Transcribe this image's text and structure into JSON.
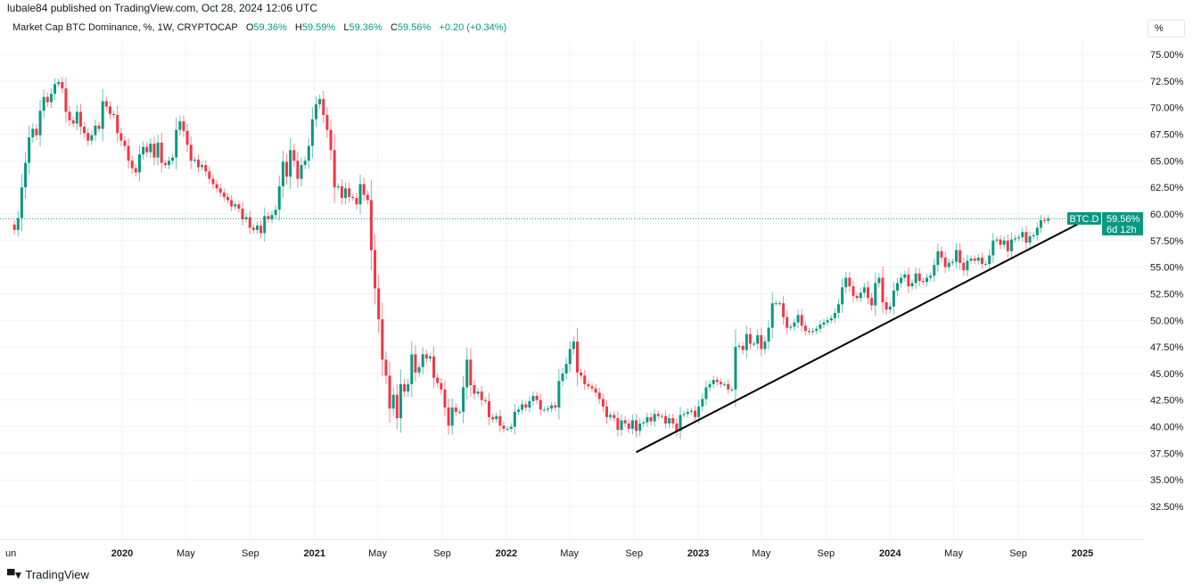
{
  "header": {
    "published": "lubale84 published on TradingView.com, Oct 28, 2024 12:06 UTC",
    "symbol": "Market Cap BTC Dominance, %, 1W, CRYPTOCAP",
    "o_label": "O",
    "o_value": "59.36%",
    "h_label": "H",
    "h_value": "59.59%",
    "l_label": "L",
    "l_value": "59.36%",
    "c_label": "C",
    "c_value": "59.56%",
    "change": "+0.20 (+0.34%)"
  },
  "scale_button": "%",
  "price_label": {
    "symbol": "BTC.D",
    "value": "59.56%",
    "countdown": "6d 12h"
  },
  "brand": {
    "logo_icon": "tradingview-logo-icon",
    "name": "TradingView"
  },
  "colors": {
    "up": "#089981",
    "down": "#f23645",
    "grid": "#f0f3fa",
    "trendline": "#000000"
  },
  "chart_data": {
    "type": "candlestick",
    "interval": "1W",
    "last_candle_date": "2024-10-28",
    "ylim": [
      30,
      76
    ],
    "yticks": [
      "32.50%",
      "35.00%",
      "37.50%",
      "40.00%",
      "42.50%",
      "45.00%",
      "47.50%",
      "50.00%",
      "52.50%",
      "55.00%",
      "57.50%",
      "60.00%",
      "62.50%",
      "65.00%",
      "67.50%",
      "70.00%",
      "72.50%",
      "75.00%"
    ],
    "ytick_values": [
      32.5,
      35,
      37.5,
      40,
      42.5,
      45,
      47.5,
      50,
      52.5,
      55,
      57.5,
      60,
      62.5,
      65,
      67.5,
      70,
      72.5,
      75
    ],
    "xticks": [
      {
        "label": "un",
        "date": "2019-06-01",
        "bold": false
      },
      {
        "label": "2020",
        "date": "2020-01-01",
        "bold": true
      },
      {
        "label": "May",
        "date": "2020-05-01",
        "bold": false
      },
      {
        "label": "Sep",
        "date": "2020-09-01",
        "bold": false
      },
      {
        "label": "2021",
        "date": "2021-01-01",
        "bold": true
      },
      {
        "label": "May",
        "date": "2021-05-01",
        "bold": false
      },
      {
        "label": "Sep",
        "date": "2021-09-01",
        "bold": false
      },
      {
        "label": "2022",
        "date": "2022-01-01",
        "bold": true
      },
      {
        "label": "May",
        "date": "2022-05-01",
        "bold": false
      },
      {
        "label": "Sep",
        "date": "2022-09-01",
        "bold": false
      },
      {
        "label": "2023",
        "date": "2023-01-01",
        "bold": true
      },
      {
        "label": "May",
        "date": "2023-05-01",
        "bold": false
      },
      {
        "label": "Sep",
        "date": "2023-09-01",
        "bold": false
      },
      {
        "label": "2024",
        "date": "2024-01-01",
        "bold": true
      },
      {
        "label": "May",
        "date": "2024-05-01",
        "bold": false
      },
      {
        "label": "Sep",
        "date": "2024-09-01",
        "bold": false
      },
      {
        "label": "2025",
        "date": "2025-01-01",
        "bold": true
      }
    ],
    "first_open": 59.0,
    "weekly_closes": [
      58.5,
      59.6,
      62.5,
      64.8,
      67.2,
      68.0,
      67.4,
      69.7,
      71.0,
      70.5,
      71.3,
      72.2,
      72.4,
      71.8,
      69.6,
      68.8,
      68.5,
      69.6,
      68.2,
      67.6,
      66.9,
      67.4,
      68.3,
      68.0,
      70.6,
      70.1,
      69.4,
      69.3,
      67.6,
      66.9,
      66.4,
      65.0,
      64.3,
      63.9,
      65.6,
      66.3,
      65.8,
      66.6,
      65.3,
      66.7,
      64.8,
      64.6,
      65.0,
      65.3,
      67.9,
      68.7,
      67.8,
      66.5,
      65.0,
      65.1,
      64.4,
      64.6,
      64.0,
      63.3,
      62.8,
      62.4,
      62.0,
      61.6,
      61.3,
      60.7,
      60.9,
      60.5,
      59.5,
      59.7,
      58.7,
      58.5,
      58.9,
      58.2,
      59.8,
      59.5,
      59.9,
      60.4,
      62.6,
      64.9,
      63.5,
      66.0,
      65.0,
      63.3,
      64.6,
      65.0,
      66.4,
      68.9,
      70.3,
      70.8,
      69.3,
      67.9,
      66.0,
      62.5,
      62.6,
      61.5,
      62.4,
      61.6,
      61.5,
      60.9,
      62.8,
      61.8,
      61.3,
      56.6,
      53.0,
      50.1,
      46.3,
      44.8,
      41.7,
      43.0,
      40.8,
      44.0,
      43.3,
      44.0,
      46.8,
      45.1,
      45.6,
      46.8,
      46.4,
      46.6,
      44.6,
      44.1,
      43.5,
      41.8,
      40.1,
      41.8,
      41.4,
      41.4,
      43.7,
      46.3,
      43.9,
      43.1,
      43.3,
      42.5,
      42.4,
      40.9,
      40.7,
      41.0,
      40.1,
      39.8,
      39.8,
      40.0,
      41.4,
      41.6,
      42.1,
      41.8,
      42.4,
      42.9,
      42.5,
      41.6,
      41.6,
      41.7,
      42.0,
      41.8,
      44.3,
      45.0,
      45.9,
      47.3,
      48.0,
      45.1,
      44.8,
      44.0,
      43.8,
      43.6,
      43.2,
      42.6,
      41.9,
      40.9,
      41.1,
      40.8,
      39.7,
      40.6,
      40.3,
      39.8,
      40.6,
      39.6,
      40.3,
      40.4,
      40.9,
      40.5,
      41.2,
      41.0,
      41.0,
      40.3,
      40.8,
      40.3,
      39.6,
      41.1,
      41.2,
      41.4,
      41.5,
      40.9,
      41.9,
      42.6,
      43.7,
      44.0,
      44.4,
      44.2,
      44.0,
      44.0,
      43.5,
      43.5,
      47.5,
      47.6,
      47.2,
      48.7,
      47.8,
      47.8,
      48.6,
      47.3,
      48.0,
      49.3,
      51.6,
      51.6,
      51.6,
      50.3,
      49.3,
      49.4,
      49.8,
      50.5,
      49.5,
      49.0,
      48.9,
      49.0,
      49.2,
      49.6,
      49.8,
      50.0,
      50.2,
      50.7,
      51.5,
      53.1,
      54.0,
      53.2,
      52.3,
      52.1,
      52.6,
      53.1,
      52.1,
      51.4,
      53.5,
      54.0,
      51.7,
      51.0,
      51.3,
      52.8,
      53.5,
      54.0,
      54.3,
      53.2,
      53.5,
      54.4,
      53.7,
      53.6,
      54.0,
      54.2,
      55.2,
      56.5,
      55.9,
      55.0,
      55.4,
      55.5,
      56.6,
      55.4,
      54.7,
      55.6,
      55.8,
      55.6,
      55.9,
      55.3,
      55.3,
      56.1,
      57.5,
      57.6,
      57.1,
      57.5,
      56.5,
      57.6,
      57.7,
      57.8,
      58.3,
      57.3,
      57.9,
      58.0,
      58.7,
      59.4,
      59.36,
      59.56
    ],
    "last_price": 59.56,
    "trendline": [
      {
        "date": "2022-09-05",
        "value": 37.6
      },
      {
        "date": "2025-01-06",
        "value": 59.4
      }
    ]
  }
}
